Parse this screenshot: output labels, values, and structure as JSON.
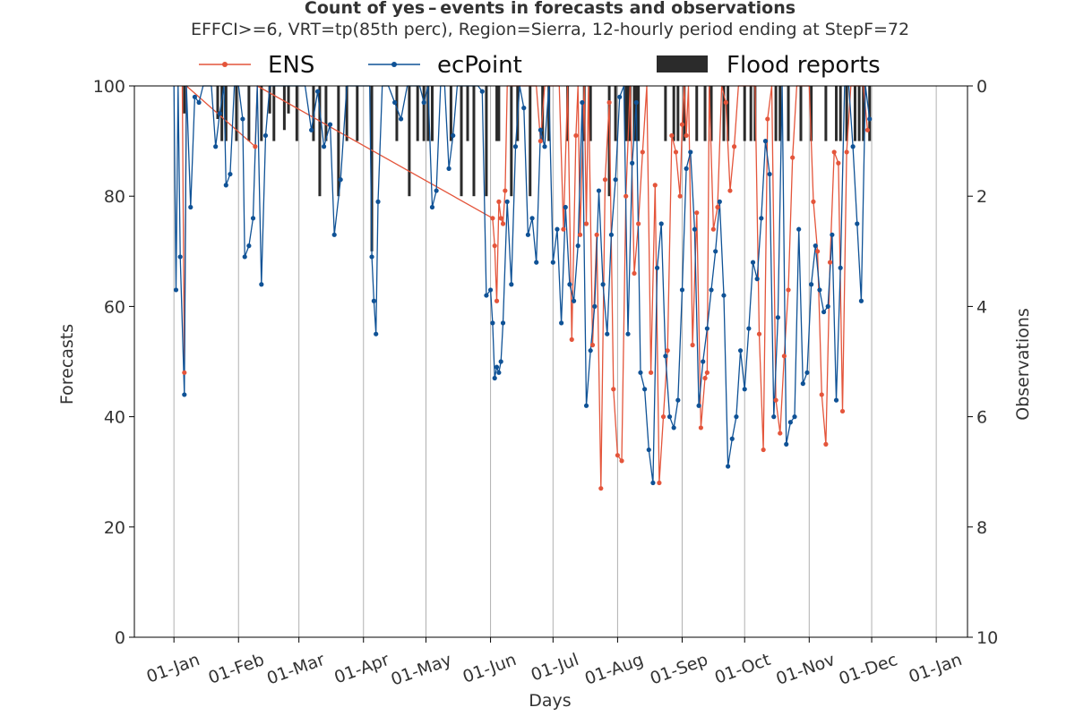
{
  "chart_data": {
    "type": "line",
    "title": "Count of yes – events in forecasts and observations",
    "subtitle": "EFFCI>=6, VRT=tp(85th perc), Region=Sierra, 12-hourly period ending at StepF=72",
    "xlabel": "Days",
    "ylabel_left": "Forecasts",
    "ylabel_right": "Observations",
    "ylim_left": [
      0,
      100
    ],
    "ylim_right_inverted": [
      0,
      10
    ],
    "yticks_left": [
      "0",
      "20",
      "40",
      "60",
      "80",
      "100"
    ],
    "yticks_right": [
      "0",
      "2",
      "4",
      "6",
      "8",
      "10"
    ],
    "xticks": [
      "01-Jan",
      "01-Feb",
      "01-Mar",
      "01-Apr",
      "01-May",
      "01-Jun",
      "01-Jul",
      "01-Aug",
      "01-Sep",
      "01-Oct",
      "01-Nov",
      "01-Dec",
      "01-Jan"
    ],
    "x_unit": "day of year",
    "xlim": [
      -19,
      381
    ],
    "grid": "vertical",
    "legend": "top",
    "legend_entries": [
      "ENS",
      "ecPoint",
      "Flood reports"
    ],
    "colors": {
      "ens": "#e4553b",
      "ecpoint": "#0f5296",
      "reports": "#2b2b2b"
    },
    "series": [
      {
        "name": "ENS",
        "x": [
          4,
          5,
          6,
          39,
          40,
          153,
          154,
          155,
          156,
          157,
          158,
          159,
          160,
          168,
          171,
          174,
          176,
          178,
          180,
          185,
          187,
          189,
          191,
          193,
          194,
          195,
          197,
          198,
          199,
          201,
          203,
          205,
          207,
          209,
          211,
          213,
          215,
          217,
          219,
          221,
          223,
          225,
          227,
          229,
          231,
          233,
          235,
          237,
          239,
          241,
          243,
          244,
          245,
          246,
          247,
          249,
          251,
          253,
          255,
          256,
          257,
          259,
          261,
          263,
          265,
          267,
          269,
          271,
          273,
          275,
          277,
          279,
          281,
          283,
          285,
          287,
          289,
          291,
          293,
          295,
          297,
          299,
          301,
          303,
          305,
          307,
          309,
          311,
          313,
          315,
          317,
          319,
          321,
          323,
          325,
          327,
          329,
          331,
          333
        ],
        "y": [
          100,
          48,
          100,
          89,
          100,
          76,
          71,
          61,
          79,
          76,
          75,
          81,
          100,
          100,
          100,
          100,
          90,
          100,
          100,
          100,
          74,
          100,
          54,
          91,
          100,
          73,
          100,
          75,
          100,
          53,
          73,
          27,
          83,
          97,
          45,
          33,
          32,
          80,
          100,
          66,
          75,
          88,
          100,
          48,
          82,
          28,
          40,
          52,
          91,
          88,
          80,
          93,
          100,
          91,
          100,
          53,
          77,
          38,
          47,
          48,
          100,
          74,
          78,
          100,
          97,
          81,
          89,
          100,
          100,
          100,
          100,
          100,
          55,
          34,
          94,
          100,
          43,
          37,
          51,
          63,
          87,
          100,
          100,
          100,
          100,
          79,
          70,
          44,
          35,
          68,
          88,
          86,
          41,
          88,
          100,
          100,
          100,
          100,
          92
        ]
      },
      {
        "name": "ecPoint",
        "x": [
          0,
          1,
          2,
          3,
          5,
          6,
          8,
          10,
          12,
          14,
          16,
          18,
          20,
          22,
          24,
          25,
          27,
          29,
          31,
          33,
          34,
          36,
          38,
          40,
          42,
          44,
          46,
          48,
          50,
          52,
          55,
          58,
          60,
          63,
          66,
          69,
          72,
          75,
          77,
          80,
          83,
          86,
          89,
          92,
          94,
          95,
          96,
          97,
          98,
          100,
          103,
          106,
          109,
          112,
          114,
          116,
          118,
          120,
          122,
          124,
          126,
          128,
          130,
          132,
          134,
          136,
          138,
          140,
          142,
          144,
          146,
          148,
          150,
          152,
          153,
          154,
          155,
          156,
          157,
          158,
          160,
          162,
          164,
          166,
          168,
          170,
          172,
          174,
          176,
          178,
          180,
          182,
          184,
          186,
          188,
          190,
          192,
          194,
          196,
          198,
          200,
          202,
          204,
          206,
          208,
          210,
          212,
          214,
          216,
          218,
          220,
          222,
          224,
          226,
          228,
          230,
          232,
          234,
          236,
          238,
          240,
          242,
          244,
          246,
          248,
          250,
          252,
          254,
          256,
          258,
          260,
          262,
          264,
          266,
          268,
          270,
          272,
          274,
          276,
          278,
          280,
          282,
          284,
          286,
          288,
          290,
          292,
          294,
          296,
          298,
          300,
          302,
          304,
          306,
          308,
          310,
          312,
          314,
          316,
          318,
          320,
          322,
          324,
          326,
          328,
          330,
          332,
          334
        ],
        "y": [
          100,
          63,
          100,
          69,
          44,
          100,
          78,
          98,
          97,
          100,
          100,
          100,
          89,
          95,
          100,
          82,
          84,
          100,
          100,
          94,
          69,
          71,
          76,
          100,
          64,
          91,
          100,
          100,
          100,
          100,
          100,
          100,
          100,
          100,
          92,
          99,
          89,
          93,
          73,
          83,
          100,
          100,
          100,
          100,
          100,
          69,
          61,
          55,
          79,
          100,
          100,
          97,
          94,
          100,
          100,
          100,
          100,
          97,
          100,
          78,
          81,
          100,
          100,
          85,
          91,
          100,
          100,
          100,
          100,
          100,
          100,
          99,
          62,
          63,
          57,
          47,
          49,
          48,
          50,
          57,
          79,
          64,
          89,
          100,
          96,
          73,
          76,
          68,
          92,
          89,
          100,
          68,
          74,
          57,
          78,
          64,
          61,
          71,
          97,
          42,
          52,
          60,
          81,
          64,
          55,
          73,
          83,
          98,
          100,
          55,
          86,
          97,
          48,
          45,
          34,
          28,
          67,
          75,
          51,
          40,
          38,
          43,
          63,
          85,
          88,
          74,
          42,
          50,
          56,
          63,
          70,
          79,
          62,
          31,
          36,
          40,
          52,
          45,
          56,
          68,
          65,
          76,
          90,
          84,
          40,
          58,
          100,
          35,
          39,
          40,
          74,
          46,
          48,
          64,
          71,
          63,
          59,
          60,
          73,
          43,
          67,
          100,
          100,
          89,
          75,
          61,
          100,
          94
        ]
      }
    ],
    "bars": {
      "name": "Flood reports",
      "x": [
        5,
        21,
        23,
        25,
        30,
        36,
        42,
        46,
        48,
        53,
        55,
        59,
        67,
        70,
        73,
        79,
        83,
        88,
        95,
        107,
        113,
        117,
        120,
        122,
        124,
        133,
        138,
        141,
        144,
        150,
        155,
        156,
        162,
        165,
        171,
        177,
        180,
        189,
        197,
        200,
        209,
        212,
        217,
        218,
        219,
        221,
        222,
        223,
        236,
        240,
        242,
        245,
        251,
        255,
        258,
        264,
        266,
        274,
        277,
        279,
        289,
        291,
        295,
        301,
        306,
        313,
        318,
        320,
        323,
        327,
        329,
        331,
        334
      ],
      "values": [
        0.5,
        0.6,
        1,
        1,
        1,
        1,
        1,
        0.5,
        1,
        0.8,
        0.5,
        1,
        1,
        2,
        1,
        2,
        1,
        1,
        3,
        1,
        2,
        1,
        1,
        1,
        1,
        1,
        2,
        1,
        2,
        2,
        1,
        1,
        2,
        1,
        2,
        1,
        1,
        1,
        1,
        1,
        2,
        1,
        1,
        1,
        1,
        1,
        1,
        1,
        1,
        1,
        1,
        1,
        1,
        1,
        1,
        1,
        1,
        1,
        1,
        1,
        1,
        1,
        1,
        1,
        1,
        1,
        1,
        1,
        1,
        1,
        1,
        1,
        1
      ]
    }
  }
}
